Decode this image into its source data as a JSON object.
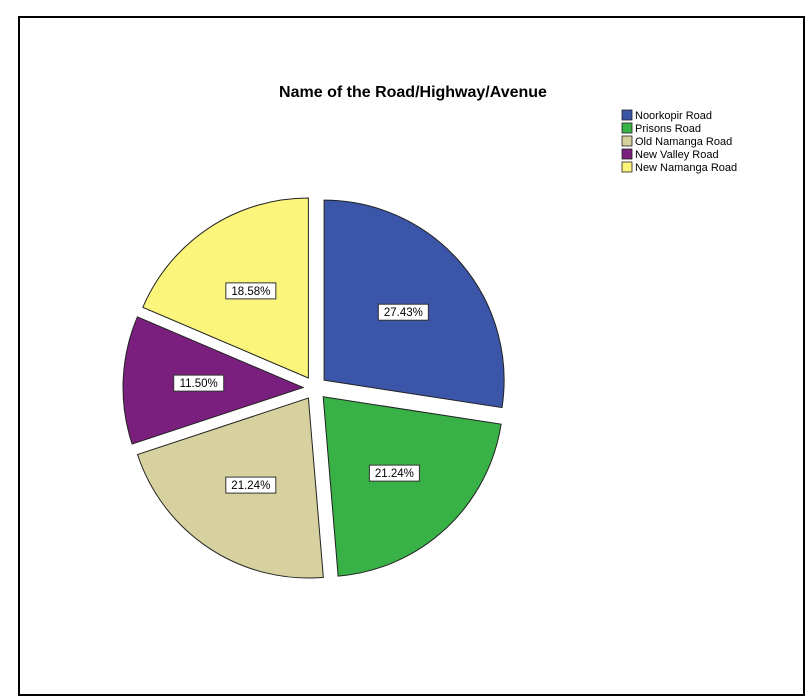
{
  "chart_data": {
    "type": "pie",
    "title": "Name of the Road/Highway/Avenue",
    "legend_position": "top-right",
    "exploded": true,
    "slices": [
      {
        "label": "Noorkopir Road",
        "value": 27.43,
        "value_label": "27.43%",
        "color": "#3b55a8"
      },
      {
        "label": "Prisons Road",
        "value": 21.24,
        "value_label": "21.24%",
        "color": "#38b246"
      },
      {
        "label": "Old Namanga Road",
        "value": 21.24,
        "value_label": "21.24%",
        "color": "#d6d19e"
      },
      {
        "label": "New Valley Road",
        "value": 11.5,
        "value_label": "11.50%",
        "color": "#7b1f7e"
      },
      {
        "label": "New Namanga Road",
        "value": 18.58,
        "value_label": "18.58%",
        "color": "#fbf57b"
      }
    ]
  }
}
